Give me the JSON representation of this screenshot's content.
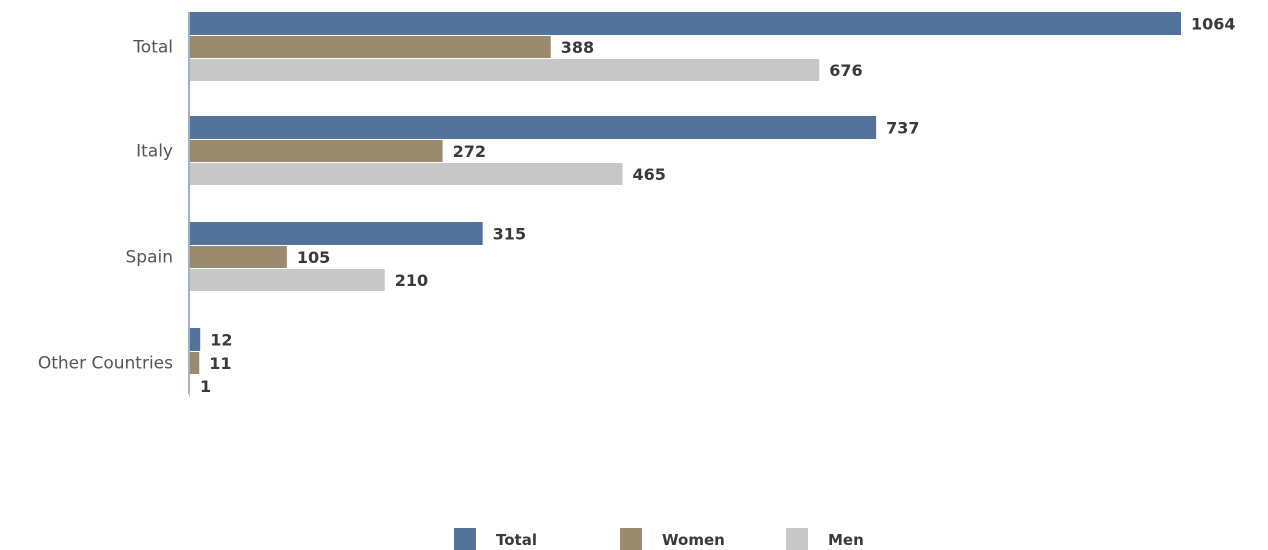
{
  "chart_data": {
    "type": "bar",
    "orientation": "horizontal",
    "categories": [
      "Total",
      "Italy",
      "Spain",
      "Other Countries"
    ],
    "series": [
      {
        "name": "Total",
        "values": [
          1064,
          737,
          315,
          12
        ],
        "color": "#53749a"
      },
      {
        "name": "Women",
        "values": [
          388,
          272,
          105,
          11
        ],
        "color": "#9a8a6e"
      },
      {
        "name": "Men",
        "values": [
          676,
          465,
          210,
          1
        ],
        "color": "#c8c8c8"
      }
    ],
    "xlim": [
      0,
      1064
    ],
    "axis_color": "#9fb2c8",
    "grid": false,
    "legend_position": "bottom"
  }
}
